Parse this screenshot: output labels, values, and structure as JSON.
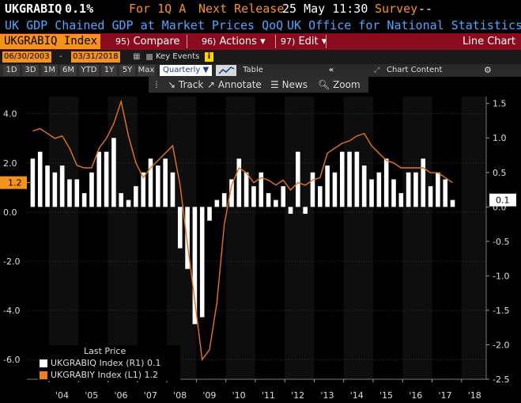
{
  "header": {
    "ticker": "UKGRABIQ",
    "last_value": "0.1%",
    "period": "For 1Q A",
    "next_release_label": "Next Release",
    "next_release": "25 May 11:30",
    "survey_label": "Survey",
    "survey_value": "--"
  },
  "subheader": {
    "description": "UK GDP Chained GDP at Market Prices QoQ",
    "source": "UK Office for National Statistics"
  },
  "toolbar": {
    "security": "UKGRABIQ Index",
    "compare_num": "95)",
    "compare": "Compare",
    "actions_num": "96)",
    "actions": "Actions",
    "edit_num": "97)",
    "edit": "Edit",
    "chart_type": "Line Chart"
  },
  "range": {
    "start": "06/30/2003",
    "end": "03/31/2018",
    "key_events": "Key Events",
    "info": "i"
  },
  "periods": [
    "1D",
    "3D",
    "1M",
    "6M",
    "YTD",
    "1Y",
    "5Y",
    "Max"
  ],
  "frequency": "Quarterly",
  "table_label": "Table",
  "chart_content": "Chart Content",
  "tools": {
    "track": "Track",
    "annotate": "Annotate",
    "news": "News",
    "zoom": "Zoom"
  },
  "legend": {
    "title": "Last Price",
    "items": [
      {
        "label": "UKGRABIQ Index  (R1) 0.1",
        "color": "#ffffff"
      },
      {
        "label": "UKGRABIY Index  (L1) 1.2",
        "color": "#f07f1e"
      }
    ]
  },
  "colors": {
    "accent": "#f5921c",
    "toolbar_red": "#8b0a1e",
    "link_blue": "#4fa6ff",
    "bars": "#ffffff",
    "line": "#e8741c"
  },
  "chart_data": {
    "type": "bar",
    "x_tick_labels": [
      "'04",
      "'05",
      "'06",
      "'07",
      "'08",
      "'09",
      "'10",
      "'11",
      "'12",
      "'13",
      "'14",
      "'15",
      "'16",
      "'17",
      "'18"
    ],
    "left_axis": {
      "ticks": [
        "4.0",
        "2.0",
        "0.0",
        "-2.0",
        "-4.0",
        "-6.0"
      ],
      "ylim": [
        -6.8,
        4.7
      ]
    },
    "right_axis": {
      "ticks": [
        "1.5",
        "1.0",
        "0.5",
        "0.0",
        "-0.5",
        "-1.0",
        "-1.5",
        "-2.0",
        "-2.5"
      ],
      "ylim": [
        -2.5,
        1.6
      ]
    },
    "left_last_label": "1.2",
    "right_last_label": "0.1",
    "series": [
      {
        "name": "UKGRABIQ Index",
        "axis": "right",
        "kind": "bar",
        "start": "2003Q2",
        "values": [
          0.7,
          0.8,
          0.6,
          0.5,
          0.6,
          0.4,
          0.4,
          0.2,
          0.5,
          0.8,
          0.8,
          1.0,
          0.2,
          0.1,
          0.3,
          0.5,
          0.7,
          0.6,
          0.7,
          0.5,
          -0.6,
          -0.9,
          -1.7,
          -1.6,
          -0.2,
          0.1,
          0.2,
          0.4,
          0.7,
          0.5,
          0.3,
          0.5,
          0.2,
          0.1,
          0.3,
          -0.1,
          0.8,
          -0.1,
          0.5,
          0.3,
          0.6,
          0.5,
          0.8,
          0.8,
          0.8,
          0.6,
          0.4,
          0.5,
          0.7,
          0.4,
          0.2,
          0.5,
          0.5,
          0.7,
          0.3,
          0.5,
          0.4,
          0.1
        ]
      },
      {
        "name": "UKGRABIY Index",
        "axis": "left",
        "kind": "line",
        "start": "2003Q2",
        "values": [
          3.3,
          3.4,
          3.2,
          3.0,
          3.1,
          2.6,
          1.9,
          1.8,
          1.8,
          2.6,
          3.0,
          3.6,
          4.5,
          3.1,
          2.0,
          1.4,
          1.8,
          2.1,
          2.4,
          2.7,
          1.1,
          -1.3,
          -3.6,
          -6.0,
          -5.6,
          -3.7,
          -0.5,
          1.1,
          1.8,
          1.6,
          1.2,
          1.4,
          1.3,
          1.1,
          1.3,
          0.9,
          1.2,
          1.1,
          1.3,
          1.4,
          2.4,
          2.6,
          2.8,
          2.9,
          3.1,
          3.2,
          2.7,
          2.4,
          2.1,
          2.0,
          1.8,
          1.8,
          1.8,
          1.8,
          1.6,
          1.6,
          1.4,
          1.2
        ]
      }
    ]
  }
}
